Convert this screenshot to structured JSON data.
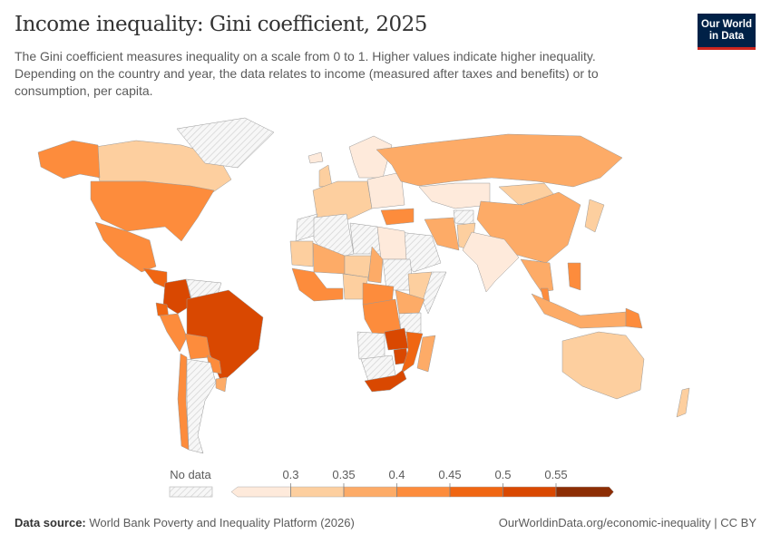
{
  "header": {
    "title": "Income inequality: Gini coefficient, 2025",
    "subtitle": "The Gini coefficient measures inequality on a scale from 0 to 1. Higher values indicate higher inequality. Depending on the country and year, the data relates to income (measured after taxes and benefits) or to consumption, per capita.",
    "logo_line1": "Our World",
    "logo_line2": "in Data"
  },
  "chart_data": {
    "type": "choropleth",
    "title": "Income inequality: Gini coefficient, 2025",
    "legend": {
      "no_data_label": "No data",
      "bins": [
        {
          "min": null,
          "max": 0.3,
          "color": "#feeadb"
        },
        {
          "min": 0.3,
          "max": 0.35,
          "color": "#fdcf9f"
        },
        {
          "min": 0.35,
          "max": 0.4,
          "color": "#fdab67"
        },
        {
          "min": 0.4,
          "max": 0.45,
          "color": "#fd8c3c"
        },
        {
          "min": 0.45,
          "max": 0.5,
          "color": "#f06612"
        },
        {
          "min": 0.5,
          "max": 0.55,
          "color": "#d94801"
        },
        {
          "min": 0.55,
          "max": null,
          "color": "#8c2d04"
        }
      ],
      "tick_labels": [
        "0.3",
        "0.35",
        "0.4",
        "0.45",
        "0.5",
        "0.55"
      ],
      "placement": "bottom"
    },
    "no_data_color": "#e6e6e6",
    "countries": [
      {
        "name": "Canada",
        "value": 0.32
      },
      {
        "name": "United States",
        "value": 0.42
      },
      {
        "name": "Alaska (US)",
        "value": 0.42
      },
      {
        "name": "Greenland",
        "value": null
      },
      {
        "name": "Mexico",
        "value": 0.43
      },
      {
        "name": "Central America",
        "value": 0.46
      },
      {
        "name": "Colombia",
        "value": 0.53
      },
      {
        "name": "Venezuela",
        "value": null
      },
      {
        "name": "Ecuador",
        "value": 0.46
      },
      {
        "name": "Peru",
        "value": 0.41
      },
      {
        "name": "Brazil",
        "value": 0.52
      },
      {
        "name": "Bolivia",
        "value": 0.42
      },
      {
        "name": "Paraguay",
        "value": 0.43
      },
      {
        "name": "Uruguay",
        "value": 0.39
      },
      {
        "name": "Argentina",
        "value": null
      },
      {
        "name": "Chile",
        "value": 0.43
      },
      {
        "name": "Iceland",
        "value": 0.26
      },
      {
        "name": "United Kingdom",
        "value": 0.32
      },
      {
        "name": "Scandinavia",
        "value": 0.28
      },
      {
        "name": "Western Europe",
        "value": 0.31
      },
      {
        "name": "Eastern Europe",
        "value": 0.28
      },
      {
        "name": "Russia",
        "value": 0.36
      },
      {
        "name": "Kazakhstan",
        "value": 0.29
      },
      {
        "name": "Mongolia",
        "value": 0.32
      },
      {
        "name": "China",
        "value": 0.37
      },
      {
        "name": "Turkey",
        "value": 0.44
      },
      {
        "name": "Iran",
        "value": 0.37
      },
      {
        "name": "Saudi Arabia",
        "value": null
      },
      {
        "name": "Afghanistan",
        "value": null
      },
      {
        "name": "Pakistan",
        "value": 0.31
      },
      {
        "name": "India",
        "value": 0.26
      },
      {
        "name": "Mainland Southeast Asia",
        "value": 0.35
      },
      {
        "name": "Japan",
        "value": 0.32
      },
      {
        "name": "Philippines",
        "value": 0.4
      },
      {
        "name": "Malaysia",
        "value": 0.41
      },
      {
        "name": "Indonesia",
        "value": 0.36
      },
      {
        "name": "Papua New Guinea",
        "value": 0.42
      },
      {
        "name": "Australia",
        "value": 0.33
      },
      {
        "name": "New Zealand",
        "value": 0.33
      },
      {
        "name": "Morocco",
        "value": null
      },
      {
        "name": "Algeria",
        "value": null
      },
      {
        "name": "Libya",
        "value": null
      },
      {
        "name": "Egypt",
        "value": 0.29
      },
      {
        "name": "Mauritania",
        "value": 0.32
      },
      {
        "name": "Mali",
        "value": 0.36
      },
      {
        "name": "Niger",
        "value": 0.33
      },
      {
        "name": "Chad",
        "value": 0.37
      },
      {
        "name": "Sudan",
        "value": null
      },
      {
        "name": "Ethiopia",
        "value": 0.33
      },
      {
        "name": "Somalia",
        "value": null
      },
      {
        "name": "West Africa coast",
        "value": 0.41
      },
      {
        "name": "Nigeria",
        "value": 0.34
      },
      {
        "name": "Cameroon / CAR",
        "value": 0.43
      },
      {
        "name": "DR Congo",
        "value": 0.44
      },
      {
        "name": "Kenya",
        "value": 0.38
      },
      {
        "name": "Tanzania",
        "value": null
      },
      {
        "name": "Angola",
        "value": null
      },
      {
        "name": "Namibia / Botswana",
        "value": null
      },
      {
        "name": "Zambia",
        "value": 0.52
      },
      {
        "name": "Zimbabwe",
        "value": 0.5
      },
      {
        "name": "Mozambique",
        "value": 0.47
      },
      {
        "name": "South Africa",
        "value": 0.53
      },
      {
        "name": "Madagascar",
        "value": 0.37
      }
    ]
  },
  "footer": {
    "source_label": "Data source:",
    "source_text": "World Bank Poverty and Inequality Platform (2026)",
    "url_text": "OurWorldinData.org/economic-inequality | CC BY"
  }
}
